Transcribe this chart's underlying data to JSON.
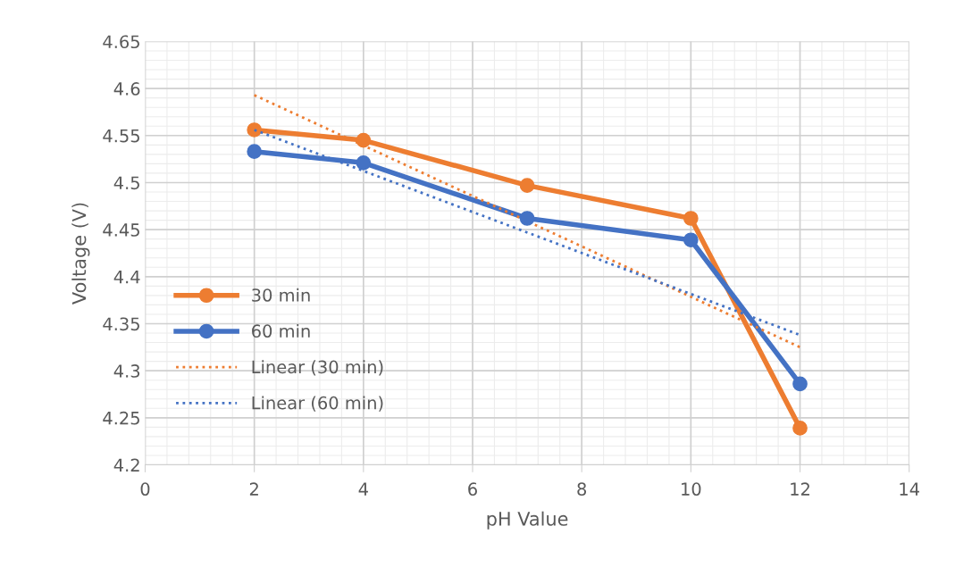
{
  "chart_data": {
    "type": "line",
    "xlabel": "pH Value",
    "ylabel": "Voltage (V)",
    "xlim": [
      0,
      14
    ],
    "xticks": [
      0,
      2,
      4,
      6,
      8,
      10,
      12,
      14
    ],
    "ylim": [
      4.2,
      4.65
    ],
    "yticks": [
      4.2,
      4.25,
      4.3,
      4.35,
      4.4,
      4.45,
      4.5,
      4.55,
      4.6,
      4.65
    ],
    "grid": true,
    "legend": "left",
    "series": [
      {
        "name": "30 min",
        "color": "#ed7d31",
        "x": [
          2,
          4,
          7,
          10,
          12
        ],
        "values": [
          4.556,
          4.545,
          4.497,
          4.462,
          4.239
        ],
        "marker": "circle",
        "line_style": "solid"
      },
      {
        "name": "60 min",
        "color": "#4472c4",
        "x": [
          2,
          4,
          7,
          10,
          12
        ],
        "values": [
          4.533,
          4.521,
          4.462,
          4.439,
          4.286
        ],
        "marker": "circle",
        "line_style": "solid"
      },
      {
        "name": "Linear (30 min)",
        "color": "#ed7d31",
        "x": [
          2,
          12
        ],
        "values": [
          4.593,
          4.325
        ],
        "marker": "none",
        "line_style": "dotted"
      },
      {
        "name": "Linear (60 min)",
        "color": "#4472c4",
        "x": [
          2,
          12
        ],
        "values": [
          4.556,
          4.338
        ],
        "marker": "none",
        "line_style": "dotted"
      }
    ]
  }
}
